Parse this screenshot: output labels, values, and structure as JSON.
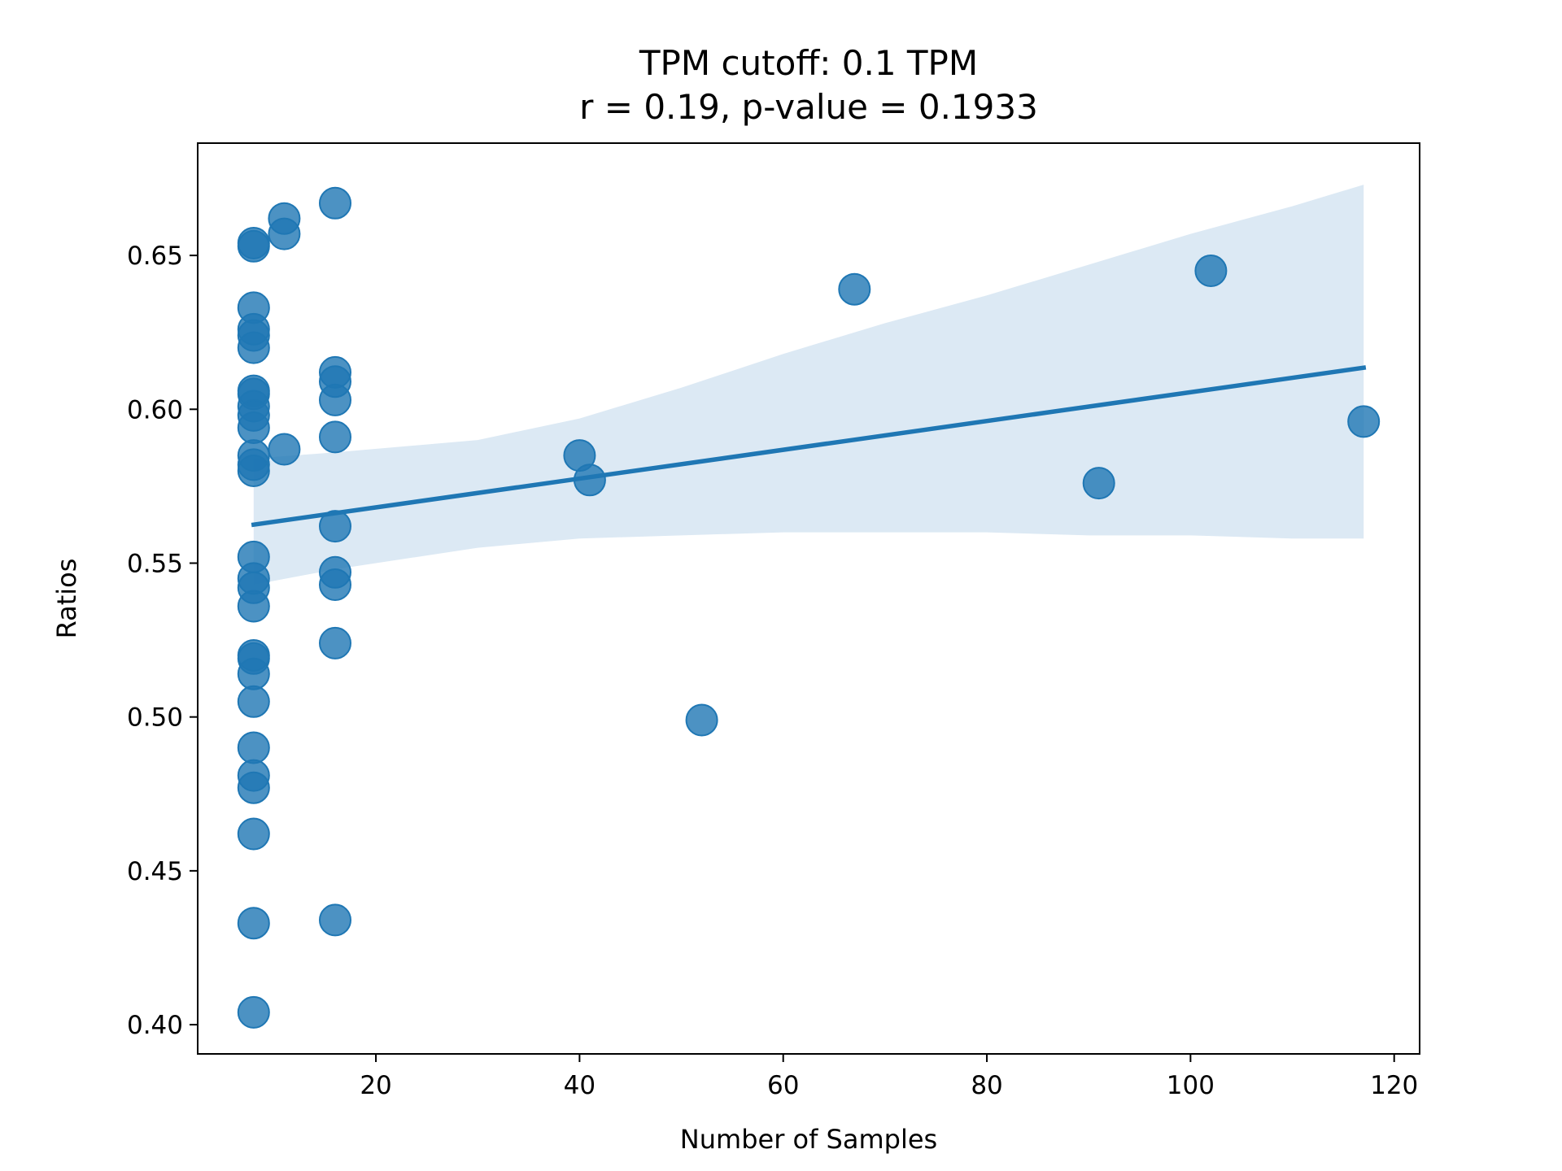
{
  "chart_data": {
    "type": "scatter",
    "title": "TPM cutoff: 0.1 TPM",
    "subtitle": "r = 0.19, p-value = 0.1933",
    "xlabel": "Number of Samples",
    "ylabel": "Ratios",
    "xlim": [
      2.5,
      122.5
    ],
    "ylim": [
      0.3905,
      0.6865
    ],
    "xticks": [
      20,
      40,
      60,
      80,
      100,
      120
    ],
    "yticks": [
      0.4,
      0.45,
      0.5,
      0.55,
      0.6,
      0.65
    ],
    "xtick_labels": [
      "20",
      "40",
      "60",
      "80",
      "100",
      "120"
    ],
    "ytick_labels": [
      "0.40",
      "0.45",
      "0.50",
      "0.55",
      "0.60",
      "0.65"
    ],
    "grid": false,
    "legend": "none",
    "colors": {
      "points": "#1f77b4",
      "line": "#1f77b4",
      "band": "#dce9f4"
    },
    "points": [
      {
        "x": 8,
        "y": 0.653
      },
      {
        "x": 8,
        "y": 0.654
      },
      {
        "x": 8,
        "y": 0.633
      },
      {
        "x": 8,
        "y": 0.626
      },
      {
        "x": 8,
        "y": 0.624
      },
      {
        "x": 8,
        "y": 0.62
      },
      {
        "x": 8,
        "y": 0.606
      },
      {
        "x": 8,
        "y": 0.605
      },
      {
        "x": 8,
        "y": 0.601
      },
      {
        "x": 8,
        "y": 0.598
      },
      {
        "x": 8,
        "y": 0.594
      },
      {
        "x": 8,
        "y": 0.585
      },
      {
        "x": 8,
        "y": 0.582
      },
      {
        "x": 8,
        "y": 0.58
      },
      {
        "x": 8,
        "y": 0.552
      },
      {
        "x": 8,
        "y": 0.545
      },
      {
        "x": 8,
        "y": 0.542
      },
      {
        "x": 8,
        "y": 0.536
      },
      {
        "x": 8,
        "y": 0.52
      },
      {
        "x": 8,
        "y": 0.519
      },
      {
        "x": 8,
        "y": 0.514
      },
      {
        "x": 8,
        "y": 0.505
      },
      {
        "x": 8,
        "y": 0.49
      },
      {
        "x": 8,
        "y": 0.481
      },
      {
        "x": 8,
        "y": 0.477
      },
      {
        "x": 8,
        "y": 0.462
      },
      {
        "x": 8,
        "y": 0.433
      },
      {
        "x": 8,
        "y": 0.404
      },
      {
        "x": 11,
        "y": 0.662
      },
      {
        "x": 11,
        "y": 0.657
      },
      {
        "x": 11,
        "y": 0.587
      },
      {
        "x": 16,
        "y": 0.667
      },
      {
        "x": 16,
        "y": 0.612
      },
      {
        "x": 16,
        "y": 0.609
      },
      {
        "x": 16,
        "y": 0.603
      },
      {
        "x": 16,
        "y": 0.591
      },
      {
        "x": 16,
        "y": 0.562
      },
      {
        "x": 16,
        "y": 0.547
      },
      {
        "x": 16,
        "y": 0.543
      },
      {
        "x": 16,
        "y": 0.524
      },
      {
        "x": 16,
        "y": 0.434
      },
      {
        "x": 40,
        "y": 0.585
      },
      {
        "x": 41,
        "y": 0.577
      },
      {
        "x": 52,
        "y": 0.499
      },
      {
        "x": 67,
        "y": 0.639
      },
      {
        "x": 91,
        "y": 0.576
      },
      {
        "x": 102,
        "y": 0.645
      },
      {
        "x": 117,
        "y": 0.596
      }
    ],
    "regression": {
      "x": [
        8,
        117
      ],
      "y": [
        0.5625,
        0.6135
      ]
    },
    "confidence_band": {
      "x": [
        8,
        16,
        30,
        40,
        50,
        60,
        70,
        80,
        90,
        100,
        110,
        117
      ],
      "upper": [
        0.584,
        0.586,
        0.59,
        0.597,
        0.607,
        0.618,
        0.628,
        0.637,
        0.647,
        0.657,
        0.666,
        0.673
      ],
      "lower": [
        0.543,
        0.548,
        0.555,
        0.558,
        0.559,
        0.56,
        0.56,
        0.56,
        0.559,
        0.559,
        0.558,
        0.558
      ]
    }
  }
}
